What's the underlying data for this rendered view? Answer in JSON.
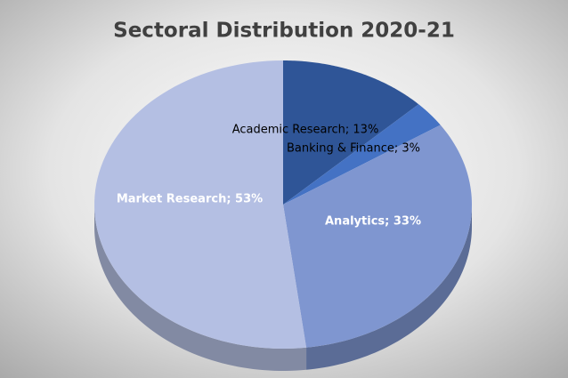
{
  "chart_data": {
    "type": "pie3d",
    "title": "Sectoral Distribution 2020-21",
    "categories": [
      "Academic Research",
      "Banking & Finance",
      "Analytics",
      "Market Research"
    ],
    "values": [
      13,
      3,
      33,
      53
    ],
    "value_labels": [
      "Academic Research; 13%",
      "Banking & Finance; 3%",
      "Analytics; 33%",
      "Market Research; 53%"
    ],
    "colors": [
      "#2f5597",
      "#4472c4",
      "#7f96d0",
      "#b4bfe3"
    ]
  }
}
